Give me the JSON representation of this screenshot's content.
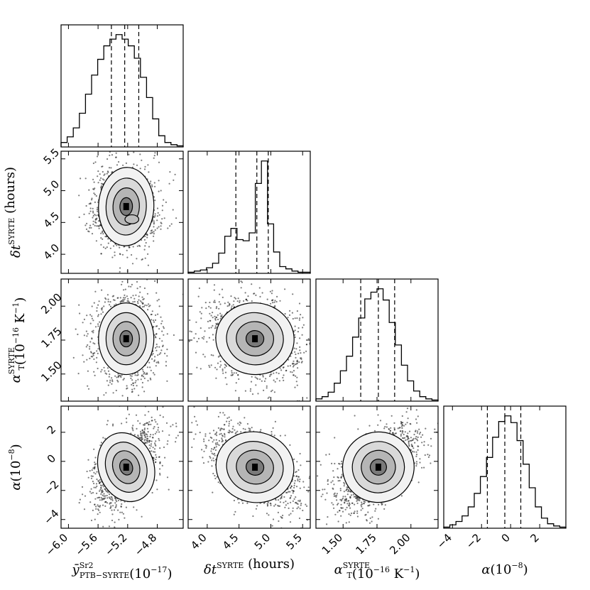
{
  "chart_data": {
    "type": "corner",
    "parameters": [
      {
        "key": "y",
        "label": "ȳ",
        "label_sup": "Sr2",
        "label_sub": "PTB−SYRTE",
        "label_unit": "(10",
        "label_unit_sup": "−17",
        "label_unit_end": ")",
        "range": [
          -6.1,
          -4.45
        ],
        "ticks": [
          -6.0,
          -5.6,
          -5.2,
          -4.8
        ],
        "tick_labels": [
          "−6.0",
          "−5.6",
          "−5.2",
          "−4.8"
        ],
        "quantiles": [
          -5.42,
          -5.24,
          -5.05
        ],
        "hist": [
          0.04,
          0.09,
          0.17,
          0.3,
          0.47,
          0.64,
          0.78,
          0.9,
          0.96,
          1.0,
          0.96,
          0.9,
          0.79,
          0.62,
          0.44,
          0.25,
          0.1,
          0.04,
          0.02,
          0.01
        ]
      },
      {
        "key": "dt",
        "label": "δt",
        "label_sup": "SYRTE",
        "label_sub": "",
        "label_unit": " (hours)",
        "label_unit_sup": "",
        "label_unit_end": "",
        "range": [
          3.7,
          5.62
        ],
        "ticks": [
          4.0,
          4.5,
          5.0,
          5.5
        ],
        "tick_labels": [
          "4.0",
          "4.5",
          "5.0",
          "5.5"
        ],
        "quantiles": [
          4.45,
          4.78,
          4.96
        ],
        "hist": [
          0.01,
          0.02,
          0.03,
          0.05,
          0.09,
          0.18,
          0.33,
          0.4,
          0.3,
          0.29,
          0.36,
          0.8,
          1.0,
          0.44,
          0.19,
          0.06,
          0.04,
          0.02,
          0.01,
          0.01
        ]
      },
      {
        "key": "aT",
        "label": "α",
        "label_sup": "SYRTE",
        "label_sub": "T",
        "label_unit": "(10",
        "label_unit_sup": "−16",
        "label_unit_end": " K",
        "range": [
          1.3,
          2.2
        ],
        "ticks": [
          1.5,
          1.75,
          2.0
        ],
        "tick_labels": [
          "1.50",
          "1.75",
          "2.00"
        ],
        "quantiles": [
          1.63,
          1.76,
          1.88
        ],
        "hist": [
          0.02,
          0.04,
          0.08,
          0.16,
          0.27,
          0.4,
          0.57,
          0.74,
          0.91,
          0.97,
          1.0,
          0.9,
          0.7,
          0.5,
          0.32,
          0.18,
          0.09,
          0.04,
          0.02,
          0.01
        ]
      },
      {
        "key": "alpha",
        "label": "α",
        "label_sup": "",
        "label_sub": "",
        "label_unit": "(10",
        "label_unit_sup": "−8",
        "label_unit_end": ")",
        "range": [
          -4.6,
          3.8
        ],
        "ticks": [
          -4,
          -2,
          0,
          2
        ],
        "tick_labels": [
          "−4",
          "−2",
          "0",
          "2"
        ],
        "quantiles": [
          -1.6,
          -0.4,
          0.7
        ],
        "hist": [
          0.01,
          0.03,
          0.06,
          0.11,
          0.19,
          0.31,
          0.46,
          0.63,
          0.81,
          0.95,
          1.0,
          0.94,
          0.78,
          0.57,
          0.36,
          0.19,
          0.09,
          0.04,
          0.02,
          0.01
        ]
      }
    ],
    "y_tick_labels": {
      "dt": [
        "4.0",
        "4.5",
        "5.0",
        "5.5"
      ],
      "aT": [
        "1.50",
        "1.75",
        "2.00"
      ],
      "alpha": [
        "−4",
        "−2",
        "0",
        "2"
      ]
    },
    "axis_labels": {
      "bottom": [
        {
          "main": "ȳ",
          "sup": "Sr2",
          "sub": "PTB−SYRTE",
          "rest": "(10",
          "rest_sup": "−17",
          "end": ")"
        },
        {
          "main": "δt",
          "sup": "SYRTE",
          "sub": "",
          "rest": " (hours)",
          "rest_sup": "",
          "end": ""
        },
        {
          "main": "α",
          "sup": "SYRTE",
          "sub": "T",
          "rest": "(10",
          "rest_sup": "−16",
          "end": " K"
        },
        {
          "main": "α",
          "sup": "",
          "sub": "",
          "rest": "(10",
          "rest_sup": "−8",
          "end": ")"
        }
      ],
      "left": [
        {
          "main": "δt",
          "sup": "SYRTE",
          "sub": "",
          "rest": " (hours)",
          "rest_sup": "",
          "end": ""
        },
        {
          "main": "α",
          "sup": "SYRTE",
          "sub": "T",
          "rest": "(10",
          "rest_sup": "−16",
          "end": " K"
        },
        {
          "main": "α",
          "sup": "",
          "sub": "",
          "rest": "(10",
          "rest_sup": "−8",
          "end": ")"
        }
      ],
      "unit_K_exp": "−1"
    },
    "correlations": {
      "dt|y": {
        "center": [
          -5.22,
          4.75
        ],
        "sd": [
          0.17,
          0.28
        ],
        "rho": -0.05,
        "bimodal_dt": [
          4.85,
          4.55
        ]
      },
      "aT|y": {
        "center": [
          -5.22,
          1.76
        ],
        "sd": [
          0.17,
          0.12
        ],
        "rho": 0.0
      },
      "alpha|y": {
        "center": [
          -5.22,
          -0.4
        ],
        "sd": [
          0.17,
          1.1
        ],
        "rho": 0.5
      },
      "aT|dt": {
        "center": [
          4.75,
          1.76
        ],
        "sd": [
          0.28,
          0.12
        ],
        "rho": -0.2
      },
      "alpha|dt": {
        "center": [
          4.75,
          -0.4
        ],
        "sd": [
          0.28,
          1.1
        ],
        "rho": -0.5
      },
      "alpha|aT": {
        "center": [
          1.76,
          -0.4
        ],
        "sd": [
          0.12,
          1.1
        ],
        "rho": 0.55
      }
    },
    "grid": false,
    "legend": "none"
  }
}
